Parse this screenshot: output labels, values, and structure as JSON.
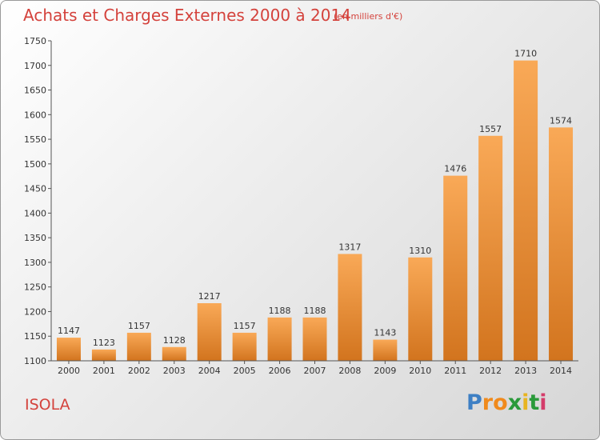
{
  "title": "Achats et Charges Externes 2000 à 2014",
  "subtitle": "(en milliers d'€)",
  "commune": "ISOLA",
  "logo": {
    "letters": [
      "P",
      "r",
      "o",
      "x",
      "i",
      "t",
      "i"
    ],
    "colors": [
      "#3d7fc4",
      "#f08a1c",
      "#f08a1c",
      "#2a9a3a",
      "#e8b420",
      "#2a9a3a",
      "#d43c6a"
    ]
  },
  "colors": {
    "text_accent": "#d4423c",
    "bar_light": "#f9a957",
    "bar_dark": "#d2741e",
    "axis": "#555555"
  },
  "chart_data": {
    "type": "bar",
    "categories": [
      "2000",
      "2001",
      "2002",
      "2003",
      "2004",
      "2005",
      "2006",
      "2007",
      "2008",
      "2009",
      "2010",
      "2011",
      "2012",
      "2013",
      "2014"
    ],
    "values": [
      1147,
      1123,
      1157,
      1128,
      1217,
      1157,
      1188,
      1188,
      1317,
      1143,
      1310,
      1476,
      1557,
      1710,
      1574
    ],
    "title": "Achats et Charges Externes 2000 à 2014",
    "ylim": [
      1100,
      1750
    ],
    "yticks": [
      1100,
      1150,
      1200,
      1250,
      1300,
      1350,
      1400,
      1450,
      1500,
      1550,
      1600,
      1650,
      1700,
      1750
    ],
    "grid": false,
    "legend": "none"
  }
}
